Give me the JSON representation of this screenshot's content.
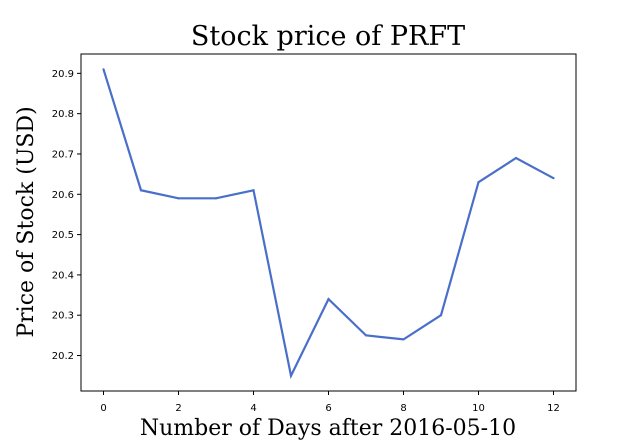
{
  "chart_data": {
    "type": "line",
    "title": "Stock price of PRFT",
    "xlabel": "Number of Days after 2016-05-10",
    "ylabel": "Price of Stock (USD)",
    "x": [
      0,
      1,
      2,
      3,
      4,
      5,
      6,
      7,
      8,
      9,
      10,
      11,
      12
    ],
    "series": [
      {
        "name": "PRFT",
        "values": [
          20.91,
          20.61,
          20.59,
          20.59,
          20.61,
          20.15,
          20.34,
          20.25,
          20.24,
          20.3,
          20.63,
          20.69,
          20.64
        ],
        "color": "#4a6fc9"
      }
    ],
    "xlim": [
      -0.6,
      12.6
    ],
    "ylim": [
      20.112,
      20.948
    ],
    "xticks": [
      0,
      2,
      4,
      6,
      8,
      10,
      12
    ],
    "xtick_labels": [
      "0",
      "2",
      "4",
      "6",
      "8",
      "10",
      "12"
    ],
    "yticks": [
      20.2,
      20.3,
      20.4,
      20.5,
      20.6,
      20.7,
      20.8,
      20.9
    ],
    "ytick_labels": [
      "20.2",
      "20.3",
      "20.4",
      "20.5",
      "20.6",
      "20.7",
      "20.8",
      "20.9"
    ],
    "grid": false,
    "legend": "none"
  }
}
